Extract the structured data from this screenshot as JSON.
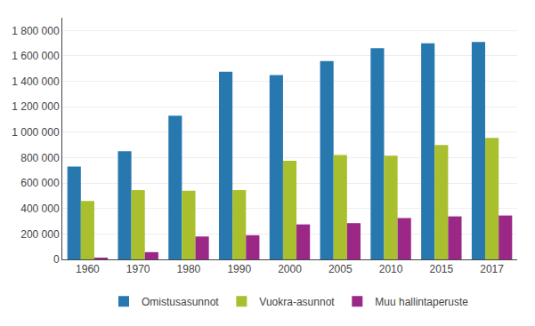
{
  "chart_data": {
    "type": "bar",
    "categories": [
      "1960",
      "1970",
      "1980",
      "1990",
      "2000",
      "2005",
      "2010",
      "2015",
      "2017"
    ],
    "series": [
      {
        "name": "Omistusasunnot",
        "color": "#2878b0",
        "values": [
          730000,
          850000,
          1130000,
          1475000,
          1450000,
          1560000,
          1660000,
          1700000,
          1710000
        ]
      },
      {
        "name": "Vuokra-asunnot",
        "color": "#aabf2e",
        "values": [
          460000,
          545000,
          540000,
          545000,
          775000,
          820000,
          815000,
          900000,
          955000
        ]
      },
      {
        "name": "Muu hallintaperuste",
        "color": "#9b2787",
        "values": [
          12000,
          57000,
          180000,
          190000,
          275000,
          285000,
          325000,
          338000,
          345000
        ]
      }
    ],
    "ylim": [
      0,
      1900000
    ],
    "yticks": [
      0,
      {
        "value": 200000,
        "label": "200 000"
      },
      {
        "value": 400000,
        "label": "400 000"
      },
      {
        "value": 600000,
        "label": "600 000"
      },
      {
        "value": 800000,
        "label": "800 000"
      },
      {
        "value": 1000000,
        "label": "1 000 000"
      },
      {
        "value": 1200000,
        "label": "1 200 000"
      },
      {
        "value": 1400000,
        "label": "1 400 000"
      },
      {
        "value": 1600000,
        "label": "1 600 000"
      },
      {
        "value": 1800000,
        "label": "1 800 000"
      }
    ],
    "grid": true,
    "legend": "bottom"
  }
}
